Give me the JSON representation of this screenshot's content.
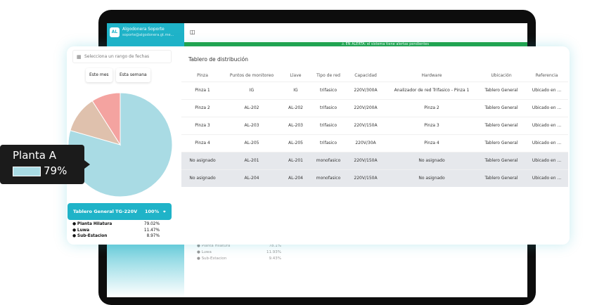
{
  "account": {
    "initials": "AL",
    "name": "Algodonera Soporte",
    "email": "soporte@algodonera.gt.me..."
  },
  "banner": "⚠ EN ALERTA: el sistema tiene alertas pendientes",
  "filters": {
    "date_placeholder": "Selecciona un rango de fechas",
    "this_month": "Este mes",
    "this_week": "Esta semana"
  },
  "tooltip": {
    "label": "Planta A",
    "value": "79%"
  },
  "chart_data": {
    "type": "pie",
    "slices": [
      {
        "name": "Planta Hilatura",
        "value": 79.02,
        "color": "#a9dbe4"
      },
      {
        "name": "Luwa",
        "value": 11.47,
        "color": "#dfc1ad"
      },
      {
        "name": "Sub-Estacion",
        "value": 8.97,
        "color": "#f4a3a0"
      }
    ]
  },
  "summary": {
    "title": "Tablero General TG-220V",
    "percent": "100%",
    "legend": [
      {
        "name": "Planta Hilatura",
        "value": "79.02%"
      },
      {
        "name": "Luwa",
        "value": "11.47%"
      },
      {
        "name": "Sub-Estacion",
        "value": "8.97%"
      }
    ]
  },
  "background_legend": [
    {
      "name": "Planta Hilatura",
      "value": "78.1%"
    },
    {
      "name": "Luwa",
      "value": "11.93%"
    },
    {
      "name": "Sub-Estacion",
      "value": "9.43%"
    }
  ],
  "table": {
    "title": "Tablero de distribución",
    "headers": [
      "Pinza",
      "Puntos de monitoreo",
      "Llave",
      "Tipo de red",
      "Capacidad",
      "Hardware",
      "Ubicación",
      "Referencia"
    ],
    "rows": [
      [
        "Pinza 1",
        "IG",
        "IG",
        "trifasico",
        "220V/300A",
        "Analizador de red Trifasico - Pinza 1",
        "Tablero General",
        "Ubicado en ..."
      ],
      [
        "Pinza 2",
        "AL-202",
        "AL-202",
        "trifasico",
        "220V/200A",
        "Pinza 2",
        "Tablero General",
        "Ubicado en ..."
      ],
      [
        "Pinza 3",
        "AL-203",
        "AL-203",
        "trifasico",
        "220V/150A",
        "Pinza 3",
        "Tablero General",
        "Ubicado en ..."
      ],
      [
        "Pinza 4",
        "AL-205",
        "AL-205",
        "trifasico",
        "220V/30A",
        "Pinza 4",
        "Tablero General",
        "Ubicado en ..."
      ],
      [
        "No asignado",
        "AL-201",
        "AL-201",
        "monofasico",
        "220V/150A",
        "No asignado",
        "Tablero General",
        "Ubicado en ..."
      ],
      [
        "No asignado",
        "AL-204",
        "AL-204",
        "monofasico",
        "220V/150A",
        "No asignado",
        "Tablero General",
        "Ubicado en ..."
      ]
    ]
  }
}
